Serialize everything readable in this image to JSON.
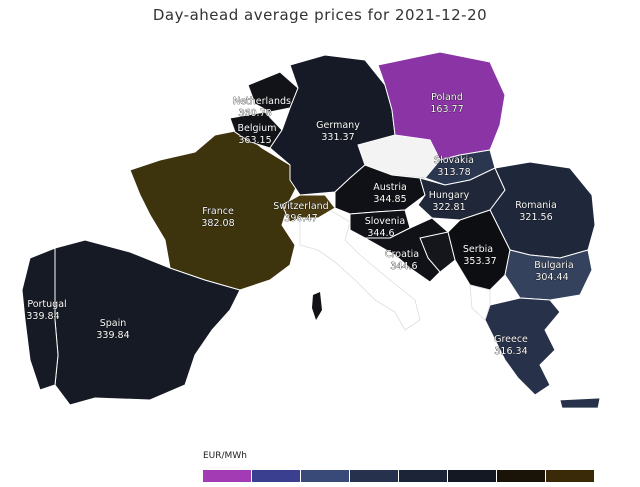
{
  "title": "Day-ahead average prices for 2021-12-20",
  "legend": {
    "unit": "EUR/MWh",
    "colors": [
      "#a33bb5",
      "#3b3f8f",
      "#3a4a78",
      "#26324d",
      "#1c2438",
      "#141822",
      "#1a1408",
      "#3a2a08"
    ]
  },
  "countries": [
    {
      "id": "poland",
      "name": "Poland",
      "value": "163.77",
      "color": "#8b34a6"
    },
    {
      "id": "germany",
      "name": "Germany",
      "value": "331.37",
      "color": "#151a26"
    },
    {
      "id": "netherlands",
      "name": "Netherlands",
      "value": "360.78",
      "color": "#111318"
    },
    {
      "id": "belgium",
      "name": "Belgium",
      "value": "363.15",
      "color": "#111317"
    },
    {
      "id": "france",
      "name": "France",
      "value": "382.08",
      "color": "#3d330c"
    },
    {
      "id": "switzerland",
      "name": "Switzerland",
      "value": "396.47",
      "color": "#4a3c10"
    },
    {
      "id": "austria",
      "name": "Austria",
      "value": "344.85",
      "color": "#0f1116"
    },
    {
      "id": "slovakia",
      "name": "Slovakia",
      "value": "313.78",
      "color": "#2b3650"
    },
    {
      "id": "hungary",
      "name": "Hungary",
      "value": "322.81",
      "color": "#1f2739"
    },
    {
      "id": "romania",
      "name": "Romania",
      "value": "321.56",
      "color": "#1f283b"
    },
    {
      "id": "slovenia",
      "name": "Slovenia",
      "value": "344.6",
      "color": "#101217"
    },
    {
      "id": "croatia",
      "name": "Croatia",
      "value": "344.6",
      "color": "#101217"
    },
    {
      "id": "serbia",
      "name": "Serbia",
      "value": "353.37",
      "color": "#0d0e12"
    },
    {
      "id": "bulgaria",
      "name": "Bulgaria",
      "value": "304.44",
      "color": "#34425d"
    },
    {
      "id": "greece",
      "name": "Greece",
      "value": "316.34",
      "color": "#27314a"
    },
    {
      "id": "portugal",
      "name": "Portugal",
      "value": "339.84",
      "color": "#161a24"
    },
    {
      "id": "spain",
      "name": "Spain",
      "value": "339.84",
      "color": "#161a24"
    }
  ]
}
